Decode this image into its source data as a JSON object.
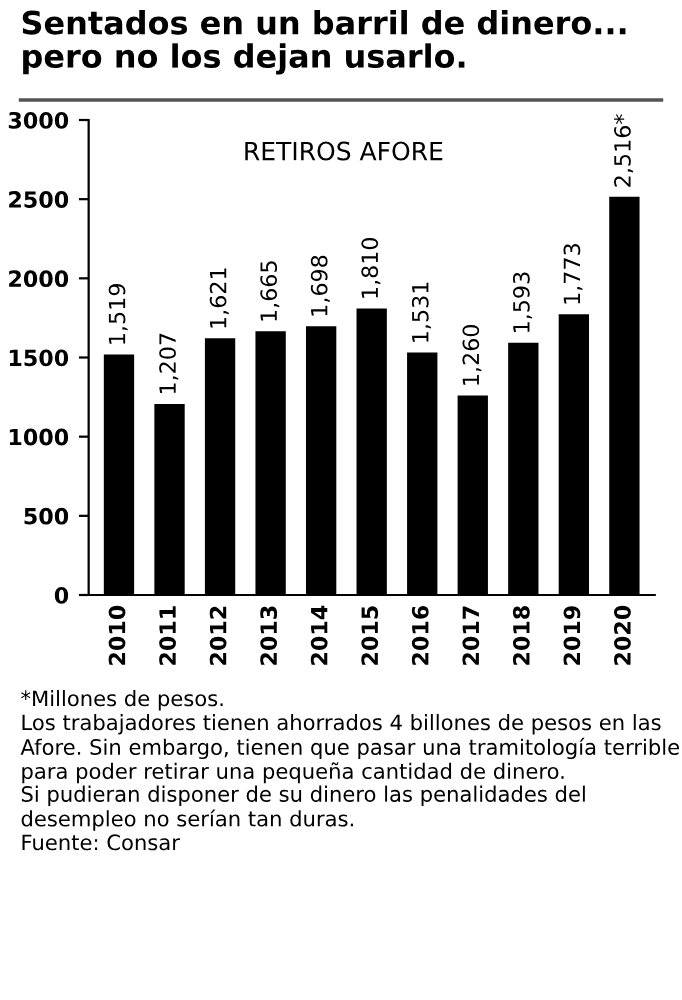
{
  "chart_data": {
    "type": "bar",
    "title": "Sentados en un barril de dinero...\npero no los dejan usarlo.",
    "subtitle": "RETIROS AFORE",
    "categories": [
      "2010",
      "2011",
      "2012",
      "2013",
      "2014",
      "2015",
      "2016",
      "2017",
      "2018",
      "2019",
      "2020"
    ],
    "values": [
      1519,
      1207,
      1621,
      1665,
      1698,
      1810,
      1531,
      1260,
      1593,
      1773,
      2516
    ],
    "value_labels": [
      "1,519",
      "1,207",
      "1,621",
      "1,665",
      "1,698",
      "1,810",
      "1,531",
      "1,260",
      "1,593",
      "1,773",
      "2,516*"
    ],
    "color": "#000000",
    "ylim": [
      0,
      3000
    ],
    "yticks": [
      0,
      500,
      1000,
      1500,
      2000,
      2500,
      3000
    ],
    "grid": false,
    "legend": false,
    "annotations": [
      "*Millones de pesos.",
      "Los trabajadores tienen ahorrados 4 billones de pesos en las Afore. Sin embargo, tienen que pasar una tramitología terrible para poder retirar una pequeña cantidad de dinero.",
      "Si pudieran disponer de su dinero las penalidades del desempleo no serían tan duras.",
      "Fuente: Consar"
    ]
  }
}
